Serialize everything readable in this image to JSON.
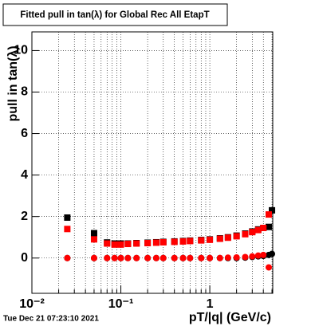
{
  "chart_data": {
    "type": "scatter",
    "title": "Fitted pull in tan(λ) for Global Rec All EtapT",
    "x_label": "pT/|q| (GeV/c)",
    "y_label": "pull in tan(λ)",
    "timestamp": "Tue Dec 21 07:23:10 2021",
    "x_log": true,
    "xlim": [
      0.01,
      5.1
    ],
    "ylim": [
      -1.7,
      10.9
    ],
    "xticks": [
      {
        "value": 0.01,
        "label": "10⁻²"
      },
      {
        "value": 0.1,
        "label": "10⁻¹"
      },
      1
    ],
    "xminorticks": [
      0.02,
      0.03,
      0.04,
      0.05,
      0.06,
      0.07,
      0.08,
      0.09,
      0.2,
      0.3,
      0.4,
      0.5,
      0.6,
      0.7,
      0.8,
      0.9,
      2,
      3,
      4,
      5
    ],
    "yticks": [
      0,
      2,
      4,
      6,
      8,
      10
    ],
    "grid": true,
    "x": [
      0.025,
      0.05,
      0.07,
      0.085,
      0.1,
      0.12,
      0.15,
      0.2,
      0.25,
      0.3,
      0.4,
      0.5,
      0.6,
      0.8,
      1.0,
      1.3,
      1.6,
      2.0,
      2.5,
      3.0,
      3.5,
      4.0,
      4.6,
      5.0
    ],
    "series": [
      {
        "marker": "square",
        "color": "#000000",
        "values": [
          1.95,
          1.2,
          0.75,
          0.7,
          0.7,
          0.7,
          0.72,
          0.74,
          0.76,
          0.78,
          0.8,
          0.82,
          0.84,
          0.87,
          0.9,
          0.95,
          1.0,
          1.08,
          1.18,
          1.28,
          1.38,
          1.45,
          1.5,
          2.3
        ]
      },
      {
        "marker": "square",
        "color": "#ff0000",
        "values": [
          1.4,
          0.9,
          0.7,
          0.65,
          0.65,
          0.68,
          0.7,
          0.72,
          0.74,
          0.76,
          0.78,
          0.8,
          0.82,
          0.85,
          0.88,
          0.93,
          0.98,
          1.05,
          1.15,
          1.25,
          1.35,
          1.45,
          2.1,
          null
        ]
      },
      {
        "marker": "circle",
        "color": "#000000",
        "values": [
          0.0,
          0.0,
          0.0,
          0.0,
          0.0,
          0.0,
          0.0,
          0.0,
          0.0,
          0.0,
          0.0,
          0.0,
          0.0,
          0.0,
          0.0,
          0.0,
          0.0,
          0.0,
          0.02,
          0.05,
          0.08,
          0.1,
          0.15,
          0.2
        ]
      },
      {
        "marker": "circle",
        "color": "#ff0000",
        "values": [
          0.0,
          0.0,
          0.0,
          0.0,
          0.0,
          0.0,
          0.0,
          0.0,
          0.0,
          0.0,
          0.0,
          0.0,
          0.0,
          0.0,
          0.0,
          0.0,
          0.02,
          0.03,
          0.05,
          0.08,
          0.12,
          0.15,
          -0.45,
          null
        ]
      }
    ]
  }
}
